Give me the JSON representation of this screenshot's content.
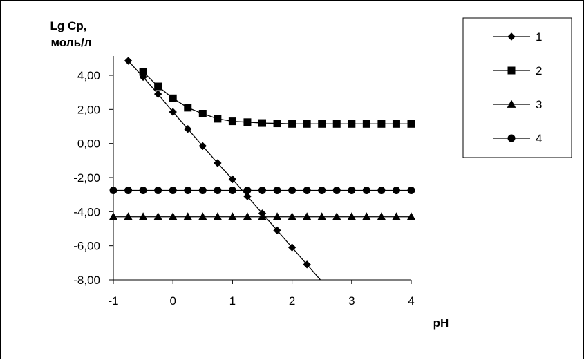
{
  "chart_data": {
    "type": "line",
    "title": "",
    "ylabel": "Lg Cp,",
    "ylabel_unit": "моль/л",
    "xlabel": "pH",
    "xlim": [
      -1,
      4
    ],
    "ylim": [
      -8,
      5
    ],
    "yticks": [
      -8,
      -6,
      -4,
      -2,
      0,
      2,
      4
    ],
    "ytick_labels": [
      "-8,00",
      "-6,00",
      "-4,00",
      "-2,00",
      "0,00",
      "2,00",
      "4,00"
    ],
    "xticks": [
      -1,
      0,
      1,
      2,
      3,
      4
    ],
    "xtick_labels": [
      "-1",
      "0",
      "1",
      "2",
      "3",
      "4"
    ],
    "grid": false,
    "legend_position": "right",
    "series": [
      {
        "name": "1",
        "marker": "diamond",
        "color": "#000000",
        "x": [
          -0.75,
          -0.5,
          -0.25,
          0,
          0.25,
          0.5,
          0.75,
          1,
          1.25,
          1.5,
          1.75,
          2,
          2.25,
          2.5
        ],
        "y": [
          4.85,
          3.9,
          2.9,
          1.85,
          0.85,
          -0.15,
          -1.15,
          -2.1,
          -3.1,
          -4.1,
          -5.1,
          -6.1,
          -7.1,
          -8.1
        ],
        "markers_through_x": 2.25
      },
      {
        "name": "2",
        "marker": "square",
        "color": "#000000",
        "x": [
          -0.5,
          -0.25,
          0,
          0.25,
          0.5,
          0.75,
          1,
          1.25,
          1.5,
          1.75,
          2,
          2.25,
          2.5,
          2.75,
          3,
          3.25,
          3.5,
          3.75,
          4
        ],
        "y": [
          4.2,
          3.35,
          2.65,
          2.1,
          1.75,
          1.45,
          1.3,
          1.25,
          1.2,
          1.18,
          1.15,
          1.15,
          1.15,
          1.15,
          1.15,
          1.15,
          1.15,
          1.15,
          1.15
        ]
      },
      {
        "name": "3",
        "marker": "triangle",
        "color": "#000000",
        "x": [
          -1,
          -0.75,
          -0.5,
          -0.25,
          0,
          0.25,
          0.5,
          0.75,
          1,
          1.25,
          1.5,
          1.75,
          2,
          2.25,
          2.5,
          2.75,
          3,
          3.25,
          3.5,
          3.75,
          4
        ],
        "y": [
          -4.3,
          -4.3,
          -4.3,
          -4.3,
          -4.3,
          -4.3,
          -4.3,
          -4.3,
          -4.3,
          -4.3,
          -4.3,
          -4.3,
          -4.3,
          -4.3,
          -4.3,
          -4.3,
          -4.3,
          -4.3,
          -4.3,
          -4.3,
          -4.3
        ]
      },
      {
        "name": "4",
        "marker": "circle",
        "color": "#000000",
        "x": [
          -1,
          -0.75,
          -0.5,
          -0.25,
          0,
          0.25,
          0.5,
          0.75,
          1,
          1.25,
          1.5,
          1.75,
          2,
          2.25,
          2.5,
          2.75,
          3,
          3.25,
          3.5,
          3.75,
          4
        ],
        "y": [
          -2.75,
          -2.75,
          -2.75,
          -2.75,
          -2.75,
          -2.75,
          -2.75,
          -2.75,
          -2.75,
          -2.75,
          -2.75,
          -2.75,
          -2.75,
          -2.75,
          -2.75,
          -2.75,
          -2.75,
          -2.75,
          -2.75,
          -2.75,
          -2.75
        ]
      }
    ]
  }
}
